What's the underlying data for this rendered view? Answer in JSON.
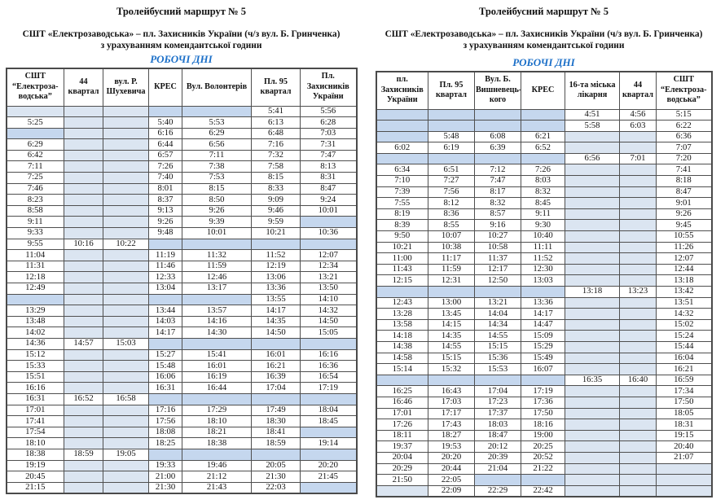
{
  "colors": {
    "days_accent": "#1b6fc8",
    "empty_light": "#dbe5f1",
    "empty_dark": "#c5d7ee"
  },
  "titles": {
    "route": "Тролейбусний маршрут № 5",
    "line": "СШТ «Електрозаводська» – пл. Захисників України (ч/з вул. Б. Гринченка)",
    "curfew": "з урахуванням комендантської години",
    "days": "РОБОЧІ ДНІ"
  },
  "left": {
    "columns": [
      "СШТ “Електроза-водська”",
      "44 квартал",
      "вул. Р. Шухевича",
      "КРЕС",
      "Вул. Волонтерів",
      "Пл. 95 квартал",
      "Пл. Захисників України"
    ],
    "rows": [
      {
        "c": [
          "",
          "",
          "",
          "",
          "",
          "5:41",
          "5:56"
        ],
        "s": "lllddww"
      },
      {
        "c": [
          "5:25",
          "",
          "",
          "5:40",
          "5:53",
          "6:13",
          "6:28"
        ],
        "s": "wllwwww"
      },
      {
        "c": [
          "",
          "",
          "",
          "6:16",
          "6:29",
          "6:48",
          "7:03"
        ],
        "s": "dllwwww"
      },
      {
        "c": [
          "6:29",
          "",
          "",
          "6:44",
          "6:56",
          "7:16",
          "7:31"
        ],
        "s": "wllwwww"
      },
      {
        "c": [
          "6:42",
          "",
          "",
          "6:57",
          "7:11",
          "7:32",
          "7:47"
        ],
        "s": "wllwwww"
      },
      {
        "c": [
          "7:11",
          "",
          "",
          "7:26",
          "7:38",
          "7:58",
          "8:13"
        ],
        "s": "wllwwww"
      },
      {
        "c": [
          "7:25",
          "",
          "",
          "7:40",
          "7:53",
          "8:15",
          "8:31"
        ],
        "s": "wllwwww"
      },
      {
        "c": [
          "7:46",
          "",
          "",
          "8:01",
          "8:15",
          "8:33",
          "8:47"
        ],
        "s": "wllwwww"
      },
      {
        "c": [
          "8:23",
          "",
          "",
          "8:37",
          "8:50",
          "9:09",
          "9:24"
        ],
        "s": "wllwwww"
      },
      {
        "c": [
          "8:58",
          "",
          "",
          "9:13",
          "9:26",
          "9:46",
          "10:01"
        ],
        "s": "wllwwww"
      },
      {
        "c": [
          "9:11",
          "",
          "",
          "9:26",
          "9:39",
          "9:59",
          ""
        ],
        "s": "wllwwwd"
      },
      {
        "c": [
          "9:33",
          "",
          "",
          "9:48",
          "10:01",
          "10:21",
          "10:36"
        ],
        "s": "wllwwww"
      },
      {
        "c": [
          "9:55",
          "10:16",
          "10:22",
          "",
          "",
          "",
          ""
        ],
        "s": "wwwdddd"
      },
      {
        "c": [
          "11:04",
          "",
          "",
          "11:19",
          "11:32",
          "11:52",
          "12:07"
        ],
        "s": "wllwwww"
      },
      {
        "c": [
          "11:31",
          "",
          "",
          "11:46",
          "11:59",
          "12:19",
          "12:34"
        ],
        "s": "wllwwww"
      },
      {
        "c": [
          "12:18",
          "",
          "",
          "12:33",
          "12:46",
          "13:06",
          "13:21"
        ],
        "s": "wllwwww"
      },
      {
        "c": [
          "12:49",
          "",
          "",
          "13:04",
          "13:17",
          "13:36",
          "13:50"
        ],
        "s": "wllwwww"
      },
      {
        "c": [
          "",
          "",
          "",
          "",
          "",
          "13:55",
          "14:10"
        ],
        "s": "dllddww"
      },
      {
        "c": [
          "13:29",
          "",
          "",
          "13:44",
          "13:57",
          "14:17",
          "14:32"
        ],
        "s": "wllwwww"
      },
      {
        "c": [
          "13:48",
          "",
          "",
          "14:03",
          "14:16",
          "14:35",
          "14:50"
        ],
        "s": "wllwwww"
      },
      {
        "c": [
          "14:02",
          "",
          "",
          "14:17",
          "14:30",
          "14:50",
          "15:05"
        ],
        "s": "wllwwww"
      },
      {
        "c": [
          "14:36",
          "14:57",
          "15:03",
          "",
          "",
          "",
          ""
        ],
        "s": "wwwdddd"
      },
      {
        "c": [
          "15:12",
          "",
          "",
          "15:27",
          "15:41",
          "16:01",
          "16:16"
        ],
        "s": "wllwwww"
      },
      {
        "c": [
          "15:33",
          "",
          "",
          "15:48",
          "16:01",
          "16:21",
          "16:36"
        ],
        "s": "wllwwww"
      },
      {
        "c": [
          "15:51",
          "",
          "",
          "16:06",
          "16:19",
          "16:39",
          "16:54"
        ],
        "s": "wllwwww"
      },
      {
        "c": [
          "16:16",
          "",
          "",
          "16:31",
          "16:44",
          "17:04",
          "17:19"
        ],
        "s": "wllwwww"
      },
      {
        "c": [
          "16:31",
          "16:52",
          "16:58",
          "",
          "",
          "",
          ""
        ],
        "s": "wwwdddd"
      },
      {
        "c": [
          "17:01",
          "",
          "",
          "17:16",
          "17:29",
          "17:49",
          "18:04"
        ],
        "s": "wllwwww"
      },
      {
        "c": [
          "17:41",
          "",
          "",
          "17:56",
          "18:10",
          "18:30",
          "18:45"
        ],
        "s": "wllwwww"
      },
      {
        "c": [
          "17:54",
          "",
          "",
          "18:08",
          "18:21",
          "18:41",
          ""
        ],
        "s": "wllwwwd"
      },
      {
        "c": [
          "18:10",
          "",
          "",
          "18:25",
          "18:38",
          "18:59",
          "19:14"
        ],
        "s": "wllwwww"
      },
      {
        "c": [
          "18:38",
          "18:59",
          "19:05",
          "",
          "",
          "",
          ""
        ],
        "s": "wwwdddd"
      },
      {
        "c": [
          "19:19",
          "",
          "",
          "19:33",
          "19:46",
          "20:05",
          "20:20"
        ],
        "s": "wllwwww"
      },
      {
        "c": [
          "20:45",
          "",
          "",
          "21:00",
          "21:12",
          "21:30",
          "21:45"
        ],
        "s": "wllwwww"
      },
      {
        "c": [
          "21:15",
          "",
          "",
          "21:30",
          "21:43",
          "22:03",
          ""
        ],
        "s": "wllwwwd"
      }
    ]
  },
  "right": {
    "columns": [
      "пл. Захисників України",
      "Пл. 95 квартал",
      "Вул. Б. Вишневець-кого",
      "КРЕС",
      "16-та міська лікарня",
      "44 квартал",
      "СШТ “Електроза-водська”"
    ],
    "rows": [
      {
        "c": [
          "",
          "",
          "",
          "",
          "4:51",
          "4:56",
          "5:15"
        ],
        "s": "ddddwww"
      },
      {
        "c": [
          "",
          "",
          "",
          "",
          "5:58",
          "6:03",
          "6:22"
        ],
        "s": "ddddwww"
      },
      {
        "c": [
          "",
          "5:48",
          "6:08",
          "6:21",
          "",
          "",
          "6:36"
        ],
        "s": "dwwwllw"
      },
      {
        "c": [
          "6:02",
          "6:19",
          "6:39",
          "6:52",
          "",
          "",
          "7:07"
        ],
        "s": "wwwwllw"
      },
      {
        "c": [
          "",
          "",
          "",
          "",
          "6:56",
          "7:01",
          "7:20"
        ],
        "s": "ddddwww"
      },
      {
        "c": [
          "6:34",
          "6:51",
          "7:12",
          "7:26",
          "",
          "",
          "7:41"
        ],
        "s": "wwwwllw"
      },
      {
        "c": [
          "7:10",
          "7:27",
          "7:47",
          "8:03",
          "",
          "",
          "8:18"
        ],
        "s": "wwwwllw"
      },
      {
        "c": [
          "7:39",
          "7:56",
          "8:17",
          "8:32",
          "",
          "",
          "8:47"
        ],
        "s": "wwwwllw"
      },
      {
        "c": [
          "7:55",
          "8:12",
          "8:32",
          "8:45",
          "",
          "",
          "9:01"
        ],
        "s": "wwwwllw"
      },
      {
        "c": [
          "8:19",
          "8:36",
          "8:57",
          "9:11",
          "",
          "",
          "9:26"
        ],
        "s": "wwwwllw"
      },
      {
        "c": [
          "8:39",
          "8:55",
          "9:16",
          "9:30",
          "",
          "",
          "9:45"
        ],
        "s": "wwwwllw"
      },
      {
        "c": [
          "9:50",
          "10:07",
          "10:27",
          "10:40",
          "",
          "",
          "10:55"
        ],
        "s": "wwwwllw"
      },
      {
        "c": [
          "10:21",
          "10:38",
          "10:58",
          "11:11",
          "",
          "",
          "11:26"
        ],
        "s": "wwwwllw"
      },
      {
        "c": [
          "11:00",
          "11:17",
          "11:37",
          "11:52",
          "",
          "",
          "12:07"
        ],
        "s": "wwwwllw"
      },
      {
        "c": [
          "11:43",
          "11:59",
          "12:17",
          "12:30",
          "",
          "",
          "12:44"
        ],
        "s": "wwwwllw"
      },
      {
        "c": [
          "12:15",
          "12:31",
          "12:50",
          "13:03",
          "",
          "",
          "13:18"
        ],
        "s": "wwwwllw"
      },
      {
        "c": [
          "",
          "",
          "",
          "",
          "13:18",
          "13:23",
          "13:42"
        ],
        "s": "ddddwww"
      },
      {
        "c": [
          "12:43",
          "13:00",
          "13:21",
          "13:36",
          "",
          "",
          "13:51"
        ],
        "s": "wwwwllw"
      },
      {
        "c": [
          "13:28",
          "13:45",
          "14:04",
          "14:17",
          "",
          "",
          "14:32"
        ],
        "s": "wwwwllw"
      },
      {
        "c": [
          "13:58",
          "14:15",
          "14:34",
          "14:47",
          "",
          "",
          "15:02"
        ],
        "s": "wwwwllw"
      },
      {
        "c": [
          "14:18",
          "14:35",
          "14:55",
          "15:09",
          "",
          "",
          "15:24"
        ],
        "s": "wwwwllw"
      },
      {
        "c": [
          "14:38",
          "14:55",
          "15:15",
          "15:29",
          "",
          "",
          "15:44"
        ],
        "s": "wwwwllw"
      },
      {
        "c": [
          "14:58",
          "15:15",
          "15:36",
          "15:49",
          "",
          "",
          "16:04"
        ],
        "s": "wwwwllw"
      },
      {
        "c": [
          "15:14",
          "15:32",
          "15:53",
          "16:07",
          "",
          "",
          "16:21"
        ],
        "s": "wwwwllw"
      },
      {
        "c": [
          "",
          "",
          "",
          "",
          "16:35",
          "16:40",
          "16:59"
        ],
        "s": "ddddwww"
      },
      {
        "c": [
          "16:25",
          "16:43",
          "17:04",
          "17:19",
          "",
          "",
          "17:34"
        ],
        "s": "wwwwllw"
      },
      {
        "c": [
          "16:46",
          "17:03",
          "17:23",
          "17:36",
          "",
          "",
          "17:50"
        ],
        "s": "wwwwllw"
      },
      {
        "c": [
          "17:01",
          "17:17",
          "17:37",
          "17:50",
          "",
          "",
          "18:05"
        ],
        "s": "wwwwllw"
      },
      {
        "c": [
          "17:26",
          "17:43",
          "18:03",
          "18:16",
          "",
          "",
          "18:31"
        ],
        "s": "wwwwllw"
      },
      {
        "c": [
          "18:11",
          "18:27",
          "18:47",
          "19:00",
          "",
          "",
          "19:15"
        ],
        "s": "wwwwllw"
      },
      {
        "c": [
          "19:37",
          "19:53",
          "20:12",
          "20:25",
          "",
          "",
          "20:40"
        ],
        "s": "wwwwllw"
      },
      {
        "c": [
          "20:04",
          "20:20",
          "20:39",
          "20:52",
          "",
          "",
          "21:07"
        ],
        "s": "wwwwllw"
      },
      {
        "c": [
          "20:29",
          "20:44",
          "21:04",
          "21:22",
          "",
          "",
          ""
        ],
        "s": "wwwwlll"
      },
      {
        "c": [
          "21:50",
          "22:05",
          "",
          "",
          "",
          "",
          ""
        ],
        "s": "wwddlll"
      },
      {
        "c": [
          "",
          "22:09",
          "22:29",
          "22:42",
          "",
          "",
          ""
        ],
        "s": "lwwwlll"
      }
    ]
  }
}
